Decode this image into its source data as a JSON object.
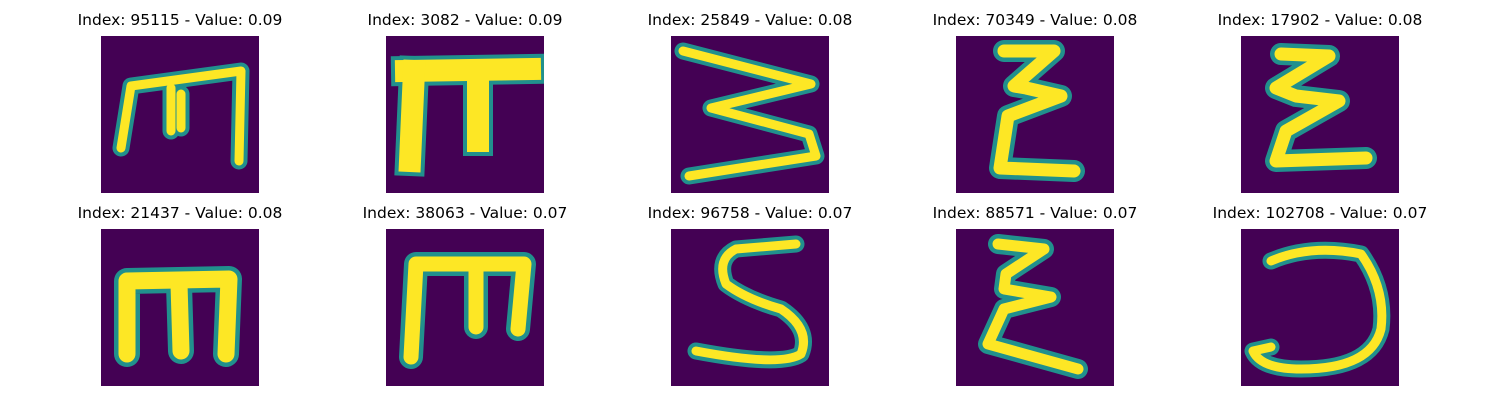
{
  "figure": {
    "colormap": "viridis",
    "background_color": "#ffffff",
    "cell_color_low": "#440154",
    "cell_color_high": "#fde725",
    "rows": 2,
    "cols": 5
  },
  "panels": [
    {
      "title": "Index: 95115 - Value: 0.09",
      "glyph": "m-shape"
    },
    {
      "title": "Index: 3082 - Value: 0.09",
      "glyph": "pi-shape"
    },
    {
      "title": "Index: 25849 - Value: 0.08",
      "glyph": "3-shape"
    },
    {
      "title": "Index: 70349 - Value: 0.08",
      "glyph": "epsilon-shape"
    },
    {
      "title": "Index: 17902 - Value: 0.08",
      "glyph": "epsilon-shape"
    },
    {
      "title": "Index: 21437 - Value: 0.08",
      "glyph": "m-shape"
    },
    {
      "title": "Index: 38063 - Value: 0.07",
      "glyph": "m-shape"
    },
    {
      "title": "Index: 96758 - Value: 0.07",
      "glyph": "s-shape"
    },
    {
      "title": "Index: 88571 - Value: 0.07",
      "glyph": "epsilon-shape"
    },
    {
      "title": "Index: 102708 - Value: 0.07",
      "glyph": "reversed-c-shape"
    }
  ]
}
